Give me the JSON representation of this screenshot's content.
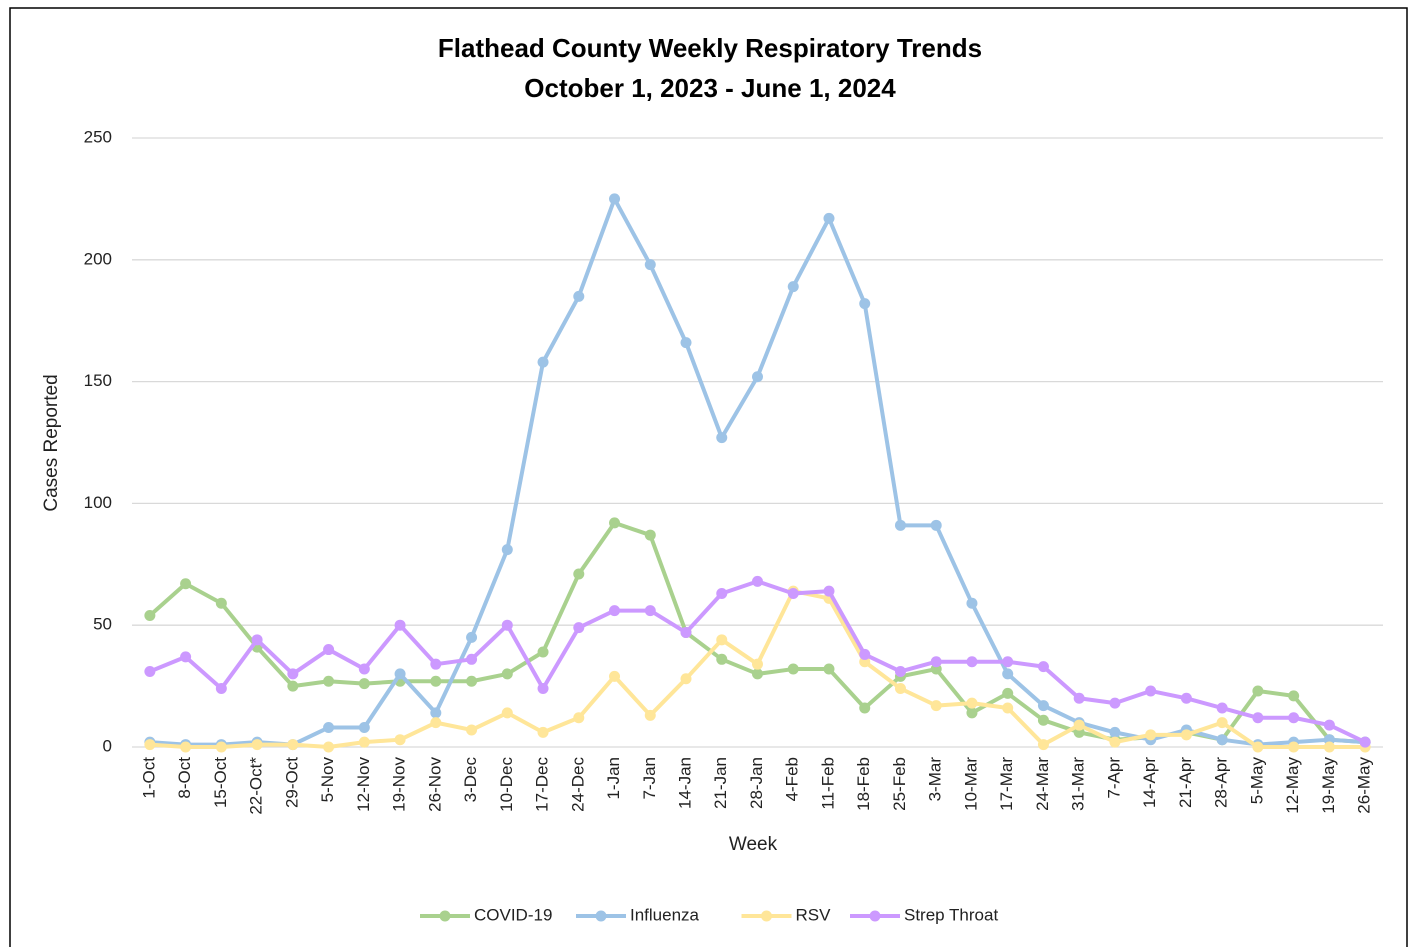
{
  "chart_data": {
    "type": "line",
    "title": "Flathead County Weekly Respiratory Trends",
    "subtitle": "October 1, 2023 - June 1, 2024",
    "x_label": "Week",
    "y_label": "Cases Reported",
    "categories": [
      "1-Oct",
      "8-Oct",
      "15-Oct",
      "22-Oct*",
      "29-Oct",
      "5-Nov",
      "12-Nov",
      "19-Nov",
      "26-Nov",
      "3-Dec",
      "10-Dec",
      "17-Dec",
      "24-Dec",
      "1-Jan",
      "7-Jan",
      "14-Jan",
      "21-Jan",
      "28-Jan",
      "4-Feb",
      "11-Feb",
      "18-Feb",
      "25-Feb",
      "3-Mar",
      "10-Mar",
      "17-Mar",
      "24-Mar",
      "31-Mar",
      "7-Apr",
      "14-Apr",
      "21-Apr",
      "28-Apr",
      "5-May",
      "12-May",
      "19-May",
      "26-May"
    ],
    "series": [
      {
        "name": "COVID-19",
        "color": "#a9d18e",
        "values": [
          54,
          67,
          59,
          41,
          25,
          27,
          26,
          27,
          27,
          27,
          30,
          39,
          71,
          92,
          87,
          47,
          36,
          30,
          32,
          32,
          16,
          29,
          32,
          14,
          22,
          11,
          6,
          3,
          4,
          6,
          3,
          23,
          21,
          3,
          2
        ]
      },
      {
        "name": "Influenza",
        "color": "#9dc3e6",
        "values": [
          2,
          1,
          1,
          2,
          1,
          8,
          8,
          30,
          14,
          45,
          81,
          158,
          185,
          225,
          198,
          166,
          127,
          152,
          189,
          217,
          182,
          91,
          91,
          59,
          30,
          17,
          10,
          6,
          3,
          7,
          3,
          1,
          2,
          3,
          2
        ]
      },
      {
        "name": "RSV",
        "color": "#ffe699",
        "values": [
          1,
          0,
          0,
          1,
          1,
          0,
          2,
          3,
          10,
          7,
          14,
          6,
          12,
          29,
          13,
          28,
          44,
          34,
          64,
          61,
          35,
          24,
          17,
          18,
          16,
          1,
          9,
          2,
          5,
          5,
          10,
          0,
          0,
          0,
          0
        ]
      },
      {
        "name": "Strep Throat",
        "color": "#cc99ff",
        "values": [
          31,
          37,
          24,
          44,
          30,
          40,
          32,
          50,
          34,
          36,
          50,
          24,
          49,
          56,
          56,
          47,
          63,
          68,
          63,
          64,
          38,
          31,
          35,
          35,
          35,
          33,
          20,
          18,
          23,
          20,
          16,
          12,
          12,
          9,
          2
        ]
      }
    ],
    "ylim": [
      0,
      250
    ],
    "yticks": [
      0,
      50,
      100,
      150,
      200,
      250
    ],
    "grid": true,
    "legend": "bottom"
  }
}
